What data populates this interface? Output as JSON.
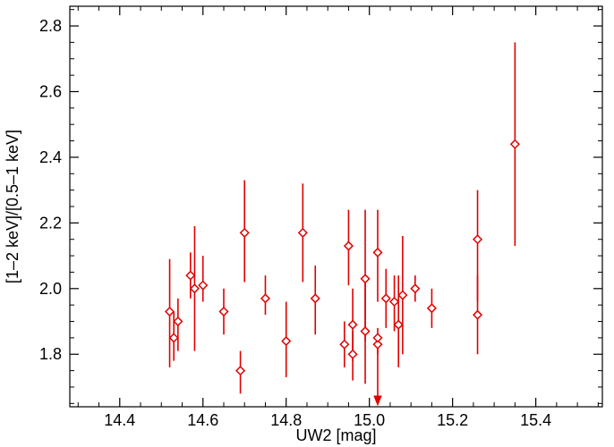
{
  "chart_data": {
    "type": "scatter",
    "xlabel": "UW2 [mag]",
    "ylabel": "[1–2 keV]/[0.5–1 keV]",
    "xlim": [
      14.28,
      15.56
    ],
    "ylim": [
      1.64,
      2.86
    ],
    "xticks": [
      14.4,
      14.6,
      14.8,
      15.0,
      15.2,
      15.4
    ],
    "xtick_labels": [
      "14.4",
      "14.6",
      "14.8",
      "15.0",
      "15.2",
      "15.4"
    ],
    "yticks": [
      1.8,
      2.0,
      2.2,
      2.4,
      2.6,
      2.8
    ],
    "ytick_labels": [
      "1.8",
      "2.0",
      "2.2",
      "2.4",
      "2.6",
      "2.8"
    ],
    "x_minor_step": 0.05,
    "y_minor_step": 0.05,
    "marker": "open-diamond",
    "color": "#e00000",
    "grid": false,
    "series": [
      {
        "points": [
          {
            "x": 14.52,
            "y": 1.93,
            "ylo": 1.76,
            "yhi": 2.09
          },
          {
            "x": 14.53,
            "y": 1.85,
            "ylo": 1.78,
            "yhi": 1.93
          },
          {
            "x": 14.54,
            "y": 1.9,
            "ylo": 1.81,
            "yhi": 1.97
          },
          {
            "x": 14.57,
            "y": 2.04,
            "ylo": 1.97,
            "yhi": 2.11
          },
          {
            "x": 14.58,
            "y": 2.0,
            "ylo": 1.81,
            "yhi": 2.19
          },
          {
            "x": 14.6,
            "y": 2.01,
            "ylo": 1.96,
            "yhi": 2.1
          },
          {
            "x": 14.65,
            "y": 1.93,
            "ylo": 1.86,
            "yhi": 2.0
          },
          {
            "x": 14.69,
            "y": 1.75,
            "ylo": 1.68,
            "yhi": 1.81
          },
          {
            "x": 14.7,
            "y": 2.17,
            "ylo": 2.02,
            "yhi": 2.33
          },
          {
            "x": 14.75,
            "y": 1.97,
            "ylo": 1.92,
            "yhi": 2.04
          },
          {
            "x": 14.8,
            "y": 1.84,
            "ylo": 1.73,
            "yhi": 1.96
          },
          {
            "x": 14.84,
            "y": 2.17,
            "ylo": 2.02,
            "yhi": 2.32
          },
          {
            "x": 14.87,
            "y": 1.97,
            "ylo": 1.86,
            "yhi": 2.07
          },
          {
            "x": 14.94,
            "y": 1.83,
            "ylo": 1.76,
            "yhi": 1.9
          },
          {
            "x": 14.95,
            "y": 2.13,
            "ylo": 2.01,
            "yhi": 2.24
          },
          {
            "x": 14.96,
            "y": 1.8,
            "ylo": 1.72,
            "yhi": 1.87
          },
          {
            "x": 14.96,
            "y": 1.89,
            "ylo": 1.78,
            "yhi": 2.0
          },
          {
            "x": 14.99,
            "y": 1.87,
            "ylo": 1.71,
            "yhi": 2.03
          },
          {
            "x": 14.99,
            "y": 2.03,
            "ylo": 1.84,
            "yhi": 2.24
          },
          {
            "x": 15.02,
            "y": 1.83,
            "ylo": 1.64,
            "yhi": 1.85,
            "arrow_down": true
          },
          {
            "x": 15.02,
            "y": 1.85,
            "ylo": 1.8,
            "yhi": 1.88
          },
          {
            "x": 15.02,
            "y": 2.11,
            "ylo": 1.96,
            "yhi": 2.24
          },
          {
            "x": 15.04,
            "y": 1.97,
            "ylo": 1.88,
            "yhi": 2.06
          },
          {
            "x": 15.06,
            "y": 1.96,
            "ylo": 1.87,
            "yhi": 2.04
          },
          {
            "x": 15.07,
            "y": 1.89,
            "ylo": 1.76,
            "yhi": 2.04
          },
          {
            "x": 15.08,
            "y": 1.98,
            "ylo": 1.8,
            "yhi": 2.16
          },
          {
            "x": 15.11,
            "y": 2.0,
            "ylo": 1.96,
            "yhi": 2.04
          },
          {
            "x": 15.15,
            "y": 1.94,
            "ylo": 1.88,
            "yhi": 2.0
          },
          {
            "x": 15.26,
            "y": 2.15,
            "ylo": 1.96,
            "yhi": 2.3
          },
          {
            "x": 15.26,
            "y": 1.92,
            "ylo": 1.8,
            "yhi": 2.04
          },
          {
            "x": 15.35,
            "y": 2.44,
            "ylo": 2.13,
            "yhi": 2.75
          }
        ]
      }
    ]
  }
}
